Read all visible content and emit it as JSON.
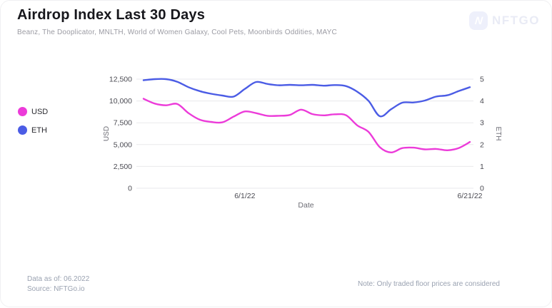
{
  "header": {
    "title": "Airdrop Index Last 30 Days",
    "subtitle": "Beanz, The Dooplicator, MNLTH, World of Women Galaxy, Cool Pets, Moonbirds Oddities, MAYC",
    "logo_text": "NFTGO",
    "logo_letter": "N"
  },
  "legend": {
    "items": [
      {
        "label": "USD",
        "color": "#ec3bd9"
      },
      {
        "label": "ETH",
        "color": "#4b5ce5"
      }
    ]
  },
  "footer": {
    "data_as_of": "Data as of: 06.2022",
    "source": "Source: NFTGo.io",
    "note": "Note: Only traded floor prices are considered"
  },
  "colors": {
    "usd_line": "#ec3bd9",
    "eth_line": "#4b5ce5",
    "gridline": "#e9e9ec",
    "tick_text": "#4a4a52",
    "axis_title_text": "#6d6d75",
    "watermark_bg": "#eef0fb",
    "watermark_text": "#e9ebf5"
  },
  "chart_data": {
    "type": "line",
    "title": "Airdrop Index Last 30 Days",
    "xlabel": "Date",
    "grid": true,
    "legend_position": "left",
    "x_ticks": [
      {
        "label": "6/1/22",
        "index": 9
      },
      {
        "label": "6/21/22",
        "index": 29
      }
    ],
    "left_axis": {
      "label": "USD",
      "range": [
        0,
        12500
      ],
      "tick_values": [
        12500,
        10000,
        7500,
        5000,
        2500,
        0
      ],
      "tick_labels": [
        "12,500",
        "10,000",
        "7,500",
        "5,000",
        "2,500",
        "0"
      ]
    },
    "right_axis": {
      "label": "ETH",
      "range": [
        0,
        5
      ],
      "tick_values": [
        5,
        4,
        3,
        2,
        1,
        0
      ],
      "tick_labels": [
        "5",
        "4",
        "3",
        "2",
        "1",
        "0"
      ]
    },
    "series": [
      {
        "name": "USD",
        "axis": "left",
        "color": "#ec3bd9",
        "values": [
          10250,
          9700,
          9500,
          9650,
          8600,
          7850,
          7600,
          7550,
          8200,
          8800,
          8600,
          8300,
          8300,
          8400,
          9000,
          8500,
          8350,
          8470,
          8360,
          7200,
          6450,
          4700,
          4100,
          4600,
          4650,
          4450,
          4500,
          4350,
          4600,
          5300
        ]
      },
      {
        "name": "ETH",
        "axis": "right",
        "color": "#4b5ce5",
        "values": [
          4.95,
          5.0,
          5.0,
          4.88,
          4.63,
          4.45,
          4.33,
          4.25,
          4.2,
          4.55,
          4.87,
          4.78,
          4.72,
          4.74,
          4.72,
          4.74,
          4.7,
          4.73,
          4.68,
          4.42,
          4.0,
          3.3,
          3.62,
          3.92,
          3.93,
          4.02,
          4.2,
          4.26,
          4.45,
          4.63
        ]
      }
    ]
  }
}
